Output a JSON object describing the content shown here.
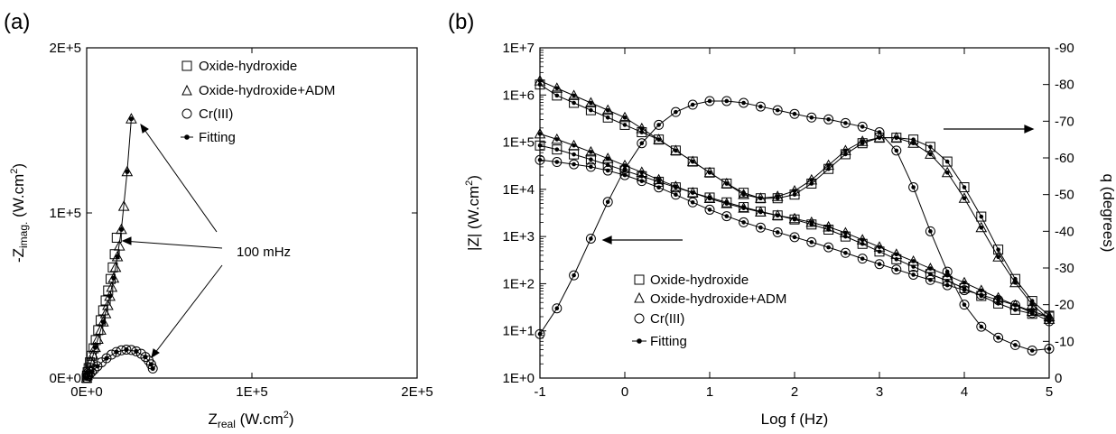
{
  "chart_data": [
    {
      "panel_label": "(a)",
      "type": "scatter",
      "x_axis": {
        "label": "Z",
        "label_sub": "real",
        "label_unit": " (W.cm",
        "label_sup": "2",
        "label_close": ")",
        "range": [
          0,
          200000
        ],
        "ticks": [
          0,
          100000,
          200000
        ],
        "tick_labels": [
          "0E+0",
          "1E+5",
          "2E+5"
        ]
      },
      "y_axis": {
        "label": "-Z",
        "label_sub": "imag.",
        "label_unit": " (W.cm",
        "label_sup": "2",
        "label_close": ")",
        "range": [
          0,
          200000
        ],
        "ticks": [
          0,
          100000,
          200000
        ],
        "tick_labels": [
          "0E+0",
          "1E+5",
          "2E+5"
        ]
      },
      "legend": [
        "Oxide-hydroxide",
        "Oxide-hydroxide+ADM",
        "Cr(III)",
        "Fitting"
      ],
      "legend_placement": "top-right",
      "annotation": "100 mHz",
      "series": [
        {
          "name": "Oxide-hydroxide",
          "marker": "square",
          "x": [
            0,
            200,
            600,
            1200,
            2000,
            3000,
            4200,
            5500,
            7000,
            8500,
            10000,
            11500,
            13000,
            14500,
            15800,
            17000,
            18200
          ],
          "y": [
            0,
            1500,
            3500,
            6000,
            9500,
            13500,
            18000,
            23000,
            29000,
            35000,
            41000,
            47000,
            53000,
            60000,
            67000,
            75000,
            85000
          ]
        },
        {
          "name": "Oxide-hydroxide+ADM",
          "marker": "triangle",
          "x": [
            0,
            300,
            800,
            1500,
            2500,
            3800,
            5200,
            6800,
            8500,
            10000,
            11500,
            12800,
            14000,
            15200,
            16300,
            17500,
            18600,
            19800,
            21000,
            22500,
            24500,
            27000
          ],
          "y": [
            0,
            1500,
            3500,
            6500,
            10000,
            14000,
            18500,
            23500,
            29000,
            34000,
            39000,
            44000,
            49500,
            55000,
            60500,
            67000,
            73500,
            80000,
            90000,
            104000,
            125000,
            157000
          ]
        },
        {
          "name": "Cr(III)",
          "marker": "circle",
          "x": [
            0,
            800,
            1800,
            3000,
            4500,
            6500,
            9000,
            12000,
            15000,
            18000,
            21000,
            24000,
            27000,
            30000,
            33000,
            35500,
            37500,
            39000,
            40000
          ],
          "y": [
            0,
            1200,
            2400,
            3700,
            5200,
            7200,
            9500,
            12000,
            14200,
            15800,
            16800,
            17200,
            17000,
            16200,
            14700,
            12800,
            10600,
            8300,
            5800
          ]
        },
        {
          "name": "Fitting",
          "marker": "dot-line",
          "x": [
            0,
            3000,
            6500,
            12000,
            18000,
            24000,
            30000,
            35500,
            39000,
            40000
          ],
          "y": [
            0,
            3700,
            7200,
            12000,
            15800,
            17200,
            16200,
            12800,
            8300,
            5800
          ]
        },
        {
          "name": "Fitting",
          "marker": "dot-line",
          "x": [
            0,
            5200,
            10000,
            14000,
            16300,
            18600,
            21000,
            24500,
            27000
          ],
          "y": [
            0,
            18500,
            34000,
            49500,
            60500,
            73500,
            90000,
            125000,
            157000
          ]
        }
      ]
    },
    {
      "panel_label": "(b)",
      "type": "line",
      "x_axis": {
        "label": "Log f (Hz)",
        "range": [
          -1,
          5
        ],
        "ticks": [
          -1,
          0,
          1,
          2,
          3,
          4,
          5
        ],
        "tick_labels": [
          "-1",
          "0",
          "1",
          "2",
          "3",
          "4",
          "5"
        ]
      },
      "y_axis": {
        "label": "|Z| (W.cm",
        "label_sup": "2",
        "label_close": ")",
        "scale": "log",
        "range": [
          1,
          10000000
        ],
        "tick_labels": [
          "1E+0",
          "1E+1",
          "1E+2",
          "1E+3",
          "1E+4",
          "1E+5",
          "1E+6",
          "1E+7"
        ]
      },
      "y2_axis": {
        "label": "q (degrees)",
        "range": [
          0,
          -90
        ],
        "ticks": [
          0,
          -10,
          -20,
          -30,
          -40,
          -50,
          -60,
          -70,
          -80,
          -90
        ],
        "tick_labels": [
          "0",
          "-10",
          "-20",
          "-30",
          "-40",
          "-50",
          "-60",
          "-70",
          "-80",
          "-90"
        ]
      },
      "legend": [
        "Oxide-hydroxide",
        "Oxide-hydroxide+ADM",
        "Cr(III)",
        "Fitting"
      ],
      "legend_placement": "bottom-left",
      "log_f": [
        -1.0,
        -0.8,
        -0.6,
        -0.4,
        -0.2,
        0.0,
        0.2,
        0.4,
        0.6,
        0.8,
        1.0,
        1.2,
        1.4,
        1.6,
        1.8,
        2.0,
        2.2,
        2.4,
        2.6,
        2.8,
        3.0,
        3.2,
        3.4,
        3.6,
        3.8,
        4.0,
        4.2,
        4.4,
        4.6,
        4.8,
        5.0
      ],
      "series": [
        {
          "name": "Oxide-hydroxide",
          "quantity": "|Z|",
          "marker": "square",
          "values": [
            85000,
            70000,
            55000,
            43000,
            33000,
            25000,
            19000,
            14500,
            11000,
            8500,
            6700,
            5300,
            4200,
            3400,
            2800,
            2300,
            1800,
            1400,
            1000,
            700,
            480,
            330,
            230,
            160,
            115,
            80,
            55,
            38,
            28,
            23,
            20
          ]
        },
        {
          "name": "Oxide-hydroxide+ADM",
          "quantity": "|Z|",
          "marker": "triangle",
          "values": [
            150000,
            115000,
            85000,
            62000,
            45000,
            32000,
            23000,
            16000,
            11500,
            8500,
            6400,
            5000,
            4000,
            3300,
            2800,
            2400,
            2000,
            1600,
            1200,
            850,
            600,
            420,
            300,
            210,
            150,
            105,
            72,
            50,
            35,
            26,
            20
          ]
        },
        {
          "name": "Cr(III)",
          "quantity": "|Z|",
          "marker": "circle",
          "values": [
            42000,
            38000,
            34000,
            30000,
            25000,
            20000,
            15000,
            11000,
            7700,
            5300,
            3700,
            2700,
            2000,
            1550,
            1230,
            970,
            760,
            590,
            450,
            340,
            260,
            200,
            155,
            120,
            93,
            73,
            58,
            45,
            35,
            24,
            16
          ]
        },
        {
          "name": "Oxide-hydroxide",
          "quantity": "phase",
          "marker": "square",
          "values": [
            -80,
            -77,
            -75,
            -73,
            -71,
            -69,
            -67,
            -65,
            -62,
            -59,
            -56,
            -53,
            -50.5,
            -49,
            -49,
            -50,
            -53,
            -57,
            -61,
            -64,
            -65.5,
            -65.5,
            -65,
            -63,
            -59,
            -52,
            -44,
            -35,
            -27,
            -21,
            -17
          ]
        },
        {
          "name": "Oxide-hydroxide+ADM",
          "quantity": "phase",
          "marker": "triangle",
          "values": [
            -81,
            -79,
            -77,
            -75,
            -73,
            -71,
            -68,
            -65,
            -62,
            -59,
            -56,
            -53,
            -50,
            -49,
            -49.5,
            -51,
            -54,
            -58,
            -62,
            -64.5,
            -65.5,
            -65.5,
            -64,
            -61,
            -56,
            -49,
            -41,
            -33,
            -26,
            -20,
            -16
          ]
        },
        {
          "name": "Cr(III)",
          "quantity": "phase",
          "marker": "circle",
          "values": [
            -12,
            -19,
            -28,
            -38,
            -48,
            -57,
            -64,
            -69,
            -72.5,
            -74.5,
            -75.5,
            -75.5,
            -75,
            -74,
            -73,
            -72,
            -71,
            -70.5,
            -69.5,
            -68.5,
            -67,
            -62,
            -52,
            -40,
            -29,
            -20,
            -14,
            -11,
            -9,
            -7.5,
            -8
          ]
        }
      ],
      "annotations": [
        "left arrow pointing to |Z| axis",
        "right arrow pointing to phase axis"
      ]
    }
  ]
}
